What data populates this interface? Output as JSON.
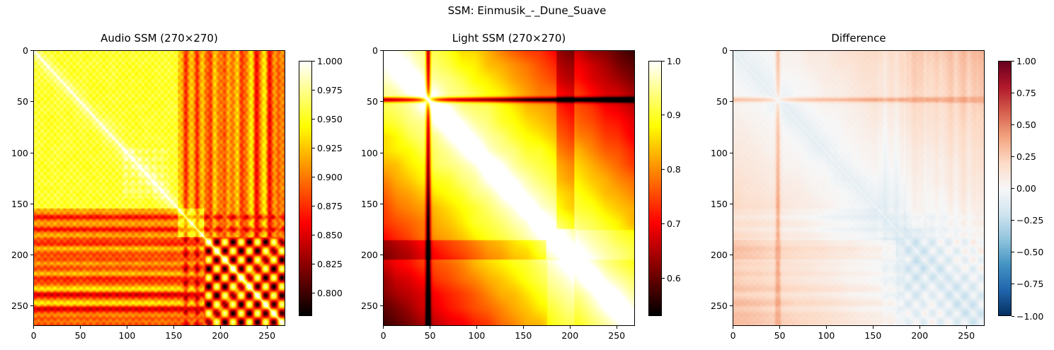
{
  "suptitle": "SSM: Einmusik_-_Dune_Suave",
  "chart_data": [
    {
      "type": "heatmap",
      "title": "Audio SSM (270×270)",
      "size": 270,
      "colormap": "hot",
      "vmin": 0.78,
      "vmax": 1.0,
      "xticks": [
        0,
        50,
        100,
        150,
        200,
        250
      ],
      "yticks": [
        0,
        50,
        100,
        150,
        200,
        250
      ],
      "colorbar_ticks": [
        1.0,
        0.975,
        0.95,
        0.925,
        0.9,
        0.875,
        0.85,
        0.825,
        0.8
      ],
      "colorbar_ticklabels": [
        "1.000",
        "0.975",
        "0.950",
        "0.925",
        "0.900",
        "0.875",
        "0.850",
        "0.825",
        "0.800"
      ],
      "structure": {
        "diagonal": 1.0,
        "base_similarity": 0.955,
        "block_boundaries": [
          0,
          155,
          183,
          270
        ],
        "dark_stripes": [
          162,
          175,
          190,
          208,
          222,
          238,
          252,
          262
        ],
        "stripe_value": 0.8,
        "checker_block": [
          183,
          270
        ]
      }
    },
    {
      "type": "heatmap",
      "title": "Light SSM (270×270)",
      "size": 270,
      "colormap": "hot",
      "vmin": 0.53,
      "vmax": 1.0,
      "xticks": [
        0,
        50,
        100,
        150,
        200,
        250
      ],
      "yticks": [
        0,
        50,
        100,
        150,
        200,
        250
      ],
      "colorbar_ticks": [
        1.0,
        0.9,
        0.8,
        0.7,
        0.6
      ],
      "colorbar_ticklabels": [
        "1.0",
        "0.9",
        "0.8",
        "0.7",
        "0.6"
      ],
      "structure": {
        "diagonal": 1.0,
        "dark_cross_index": 48,
        "cross_value": 0.6,
        "corner_values": {
          "top_right": 0.56,
          "bottom_left": 0.56
        },
        "dark_band_rows": [
          190,
          200
        ],
        "dark_column": 48
      }
    },
    {
      "type": "heatmap",
      "title": "Difference",
      "size": 270,
      "colormap": "RdBu_r",
      "vmin": -1.0,
      "vmax": 1.0,
      "xticks": [
        0,
        50,
        100,
        150,
        200,
        250
      ],
      "yticks": [
        0,
        50,
        100,
        150,
        200,
        250
      ],
      "colorbar_ticks": [
        1.0,
        0.75,
        0.5,
        0.25,
        0.0,
        -0.25,
        -0.5,
        -0.75,
        -1.0
      ],
      "colorbar_ticklabels": [
        "1.00",
        "0.75",
        "0.50",
        "0.25",
        "0.00",
        "−0.25",
        "−0.50",
        "−0.75",
        "−1.00"
      ],
      "structure": {
        "mean_difference": 0.15,
        "cross_index": 48,
        "cross_value": 0.3,
        "negative_region": [
          183,
          270
        ],
        "negative_value": -0.04
      }
    }
  ]
}
